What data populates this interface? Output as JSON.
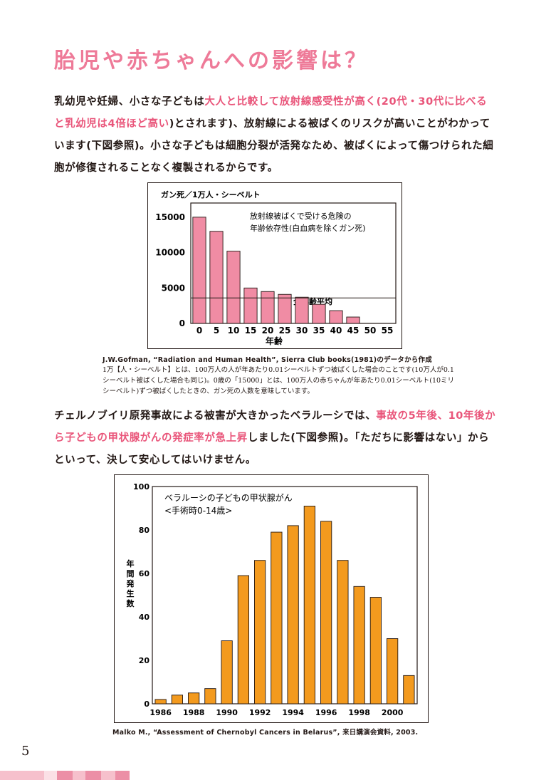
{
  "heading": "胎児や赤ちゃんへの影響は？",
  "para1": {
    "part1": "乳幼児や妊婦、小さな子どもは",
    "hl1": "大人と比較して放射線感受性が高く(20代・30代に比べると乳幼児は4倍ほど高い",
    "part2": ")とされます)、放射線による被ばくのリスクが高いことがわかっています(下図参照)。小さな子どもは細胞分裂が活発なため、被ばくによって傷つけられた細胞が修復されることなく複製されるからです。"
  },
  "para2": {
    "part1": "チェルノブイリ原発事故による被害が大きかったベラルーシでは、",
    "hl1": "事故の5年後、10年後から子どもの甲状腺がんの発症率が急上昇",
    "part2": "しました(下図参照)。「ただちに影響はない」からといって、決して安心してはいけません。"
  },
  "chart_data": [
    {
      "type": "bar",
      "title": "放射線被ばくで受ける危険の",
      "subtitle": "年齢依存性(白血病を除くガン死)",
      "ylabel": "ガン死／1万人・シーベルト",
      "xlabel": "年齢",
      "categories": [
        "0",
        "5",
        "10",
        "15",
        "20",
        "25",
        "30",
        "35",
        "40",
        "45",
        "50",
        "55"
      ],
      "values": [
        15000,
        13000,
        10200,
        5000,
        4500,
        4100,
        3700,
        2700,
        1800,
        900,
        0,
        0
      ],
      "yticks": [
        0,
        5000,
        10000,
        15000
      ],
      "ylim": [
        0,
        17000
      ],
      "reference_line": {
        "label": "全年齢平均",
        "value": 3600
      },
      "color": "#f08ca4"
    },
    {
      "type": "bar",
      "title": "ベラルーシの子どもの甲状腺がん",
      "subtitle": "<手術時0-14歳>",
      "ylabel": "年間発生数",
      "categories": [
        "1986",
        "1987",
        "1988",
        "1989",
        "1990",
        "1991",
        "1992",
        "1993",
        "1994",
        "1995",
        "1996",
        "1997",
        "1998",
        "1999",
        "2000",
        "2001"
      ],
      "xticks": [
        "1986",
        "1988",
        "1990",
        "1992",
        "1994",
        "1996",
        "1998",
        "2000"
      ],
      "values": [
        2,
        4,
        5,
        7,
        29,
        59,
        66,
        79,
        82,
        91,
        84,
        66,
        54,
        49,
        30,
        13
      ],
      "yticks": [
        0,
        20,
        40,
        60,
        80,
        100
      ],
      "ylim": [
        0,
        100
      ],
      "color": "#f39a1e"
    }
  ],
  "caption1_en": "J.W.Gofman, “Radiation and Human Health”, Sierra Club books(1981)のデータから作成",
  "caption1_jp": "1万【人・シーベルト】とは、100万人の人が年あたり0.01シーベルトずつ被ばくした場合のことです(10万人が0.1シーベルト被ばくした場合も同じ)。0歳の「15000」とは、100万人の赤ちゃんが年あたり0.01シーベルト(10ミリシーベルト)ずつ被ばくしたときの、ガン死の人数を意味しています。",
  "caption2_en": "Malko M., “Assessment of Chernobyl Cancers in Belarus”, 来日講演会資料, 2003.",
  "page_number": "5",
  "colors": {
    "accent": "#ee7a98",
    "highlight": "#e9557a",
    "band_light": "#f6c0cc",
    "band_dark": "#ec8fa6"
  }
}
